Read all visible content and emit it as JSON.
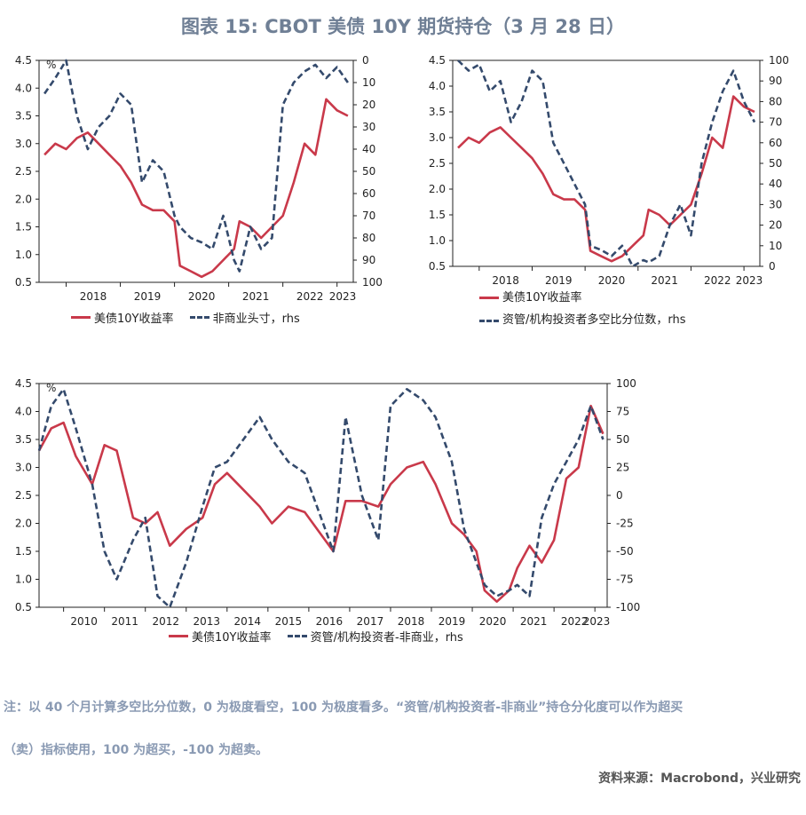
{
  "title": "图表 15: CBOT 美债 10Y 期货持仓（3 月 28 日）",
  "colors": {
    "yield": "#c9394a",
    "position": "#344a6c",
    "title": "#6f7f95"
  },
  "note_line1": "注：以 40 个月计算多空比分位数，0 为极度看空，100 为极度看多。“资管/机构投资者-非商业”持仓分化度可以作为超买",
  "note_line2": "（卖）指标使用，100 为超买，-100 为超卖。",
  "source": "资料来源：Macrobond，兴业研究",
  "chart_data": [
    {
      "type": "line",
      "left_unit": "%",
      "left_ylim": [
        0.5,
        4.5
      ],
      "left_ticks": [
        "0.5",
        "1.0",
        "1.5",
        "2.0",
        "2.5",
        "3.0",
        "3.5",
        "4.0",
        "4.5"
      ],
      "right_ylim": [
        0,
        100
      ],
      "right_inverted": true,
      "right_ticks": [
        "0",
        "10",
        "20",
        "30",
        "40",
        "50",
        "60",
        "70",
        "80",
        "90",
        "100"
      ],
      "x_ticks": [
        "2018",
        "2019",
        "2020",
        "2021",
        "2022",
        "2023"
      ],
      "legend": {
        "yield": "美债10Y收益率",
        "position": "非商业头寸，rhs"
      },
      "series": [
        {
          "name": "美债10Y收益率",
          "axis": "left",
          "x": [
            2017.6,
            2017.8,
            2018.0,
            2018.2,
            2018.4,
            2018.6,
            2018.8,
            2019.0,
            2019.2,
            2019.4,
            2019.6,
            2019.8,
            2020.0,
            2020.1,
            2020.3,
            2020.5,
            2020.7,
            2020.9,
            2021.1,
            2021.2,
            2021.4,
            2021.6,
            2021.8,
            2022.0,
            2022.2,
            2022.4,
            2022.6,
            2022.8,
            2023.0,
            2023.2
          ],
          "values": [
            2.8,
            3.0,
            2.9,
            3.1,
            3.2,
            3.0,
            2.8,
            2.6,
            2.3,
            1.9,
            1.8,
            1.8,
            1.6,
            0.8,
            0.7,
            0.6,
            0.7,
            0.9,
            1.1,
            1.6,
            1.5,
            1.3,
            1.5,
            1.7,
            2.3,
            3.0,
            2.8,
            3.8,
            3.6,
            3.5
          ]
        },
        {
          "name": "非商业头寸",
          "axis": "right",
          "x": [
            2017.6,
            2017.8,
            2018.0,
            2018.2,
            2018.4,
            2018.6,
            2018.8,
            2019.0,
            2019.2,
            2019.4,
            2019.6,
            2019.8,
            2020.0,
            2020.1,
            2020.3,
            2020.5,
            2020.7,
            2020.9,
            2021.1,
            2021.2,
            2021.4,
            2021.6,
            2021.8,
            2022.0,
            2022.2,
            2022.4,
            2022.6,
            2022.8,
            2023.0,
            2023.2
          ],
          "values": [
            15,
            8,
            0,
            25,
            40,
            30,
            25,
            15,
            20,
            55,
            45,
            50,
            70,
            75,
            80,
            82,
            85,
            70,
            90,
            95,
            75,
            85,
            80,
            20,
            10,
            5,
            2,
            8,
            3,
            10
          ]
        }
      ]
    },
    {
      "type": "line",
      "left_ylim": [
        0.5,
        4.5
      ],
      "left_ticks": [
        "0.5",
        "1.0",
        "1.5",
        "2.0",
        "2.5",
        "3.0",
        "3.5",
        "4.0",
        "4.5"
      ],
      "right_ylim": [
        0,
        100
      ],
      "right_ticks": [
        "0",
        "10",
        "20",
        "30",
        "40",
        "50",
        "60",
        "70",
        "80",
        "90",
        "100"
      ],
      "x_ticks": [
        "2018",
        "2019",
        "2020",
        "2021",
        "2022",
        "2023"
      ],
      "legend": {
        "yield": "美债10Y收益率",
        "position": "资管/机构投资者多空比分位数，rhs"
      },
      "series": [
        {
          "name": "美债10Y收益率",
          "axis": "left",
          "x": [
            2017.6,
            2017.8,
            2018.0,
            2018.2,
            2018.4,
            2018.6,
            2018.8,
            2019.0,
            2019.2,
            2019.4,
            2019.6,
            2019.8,
            2020.0,
            2020.1,
            2020.3,
            2020.5,
            2020.7,
            2020.9,
            2021.1,
            2021.2,
            2021.4,
            2021.6,
            2021.8,
            2022.0,
            2022.2,
            2022.4,
            2022.6,
            2022.8,
            2023.0,
            2023.2
          ],
          "values": [
            2.8,
            3.0,
            2.9,
            3.1,
            3.2,
            3.0,
            2.8,
            2.6,
            2.3,
            1.9,
            1.8,
            1.8,
            1.6,
            0.8,
            0.7,
            0.6,
            0.7,
            0.9,
            1.1,
            1.6,
            1.5,
            1.3,
            1.5,
            1.7,
            2.3,
            3.0,
            2.8,
            3.8,
            3.6,
            3.5
          ]
        },
        {
          "name": "资管/机构投资者多空比分位数",
          "axis": "right",
          "x": [
            2017.6,
            2017.8,
            2018.0,
            2018.2,
            2018.4,
            2018.6,
            2018.8,
            2019.0,
            2019.2,
            2019.4,
            2019.6,
            2019.8,
            2020.0,
            2020.1,
            2020.3,
            2020.5,
            2020.7,
            2020.9,
            2021.1,
            2021.2,
            2021.4,
            2021.6,
            2021.8,
            2022.0,
            2022.2,
            2022.4,
            2022.6,
            2022.8,
            2023.0,
            2023.2
          ],
          "values": [
            100,
            95,
            98,
            85,
            90,
            70,
            80,
            95,
            90,
            60,
            50,
            40,
            30,
            10,
            8,
            5,
            10,
            0,
            3,
            2,
            5,
            20,
            30,
            15,
            50,
            70,
            85,
            95,
            80,
            70
          ]
        }
      ]
    },
    {
      "type": "line",
      "left_unit": "%",
      "left_ylim": [
        0.5,
        4.5
      ],
      "left_ticks": [
        "0.5",
        "1.0",
        "1.5",
        "2.0",
        "2.5",
        "3.0",
        "3.5",
        "4.0",
        "4.5"
      ],
      "right_ylim": [
        -100,
        100
      ],
      "right_ticks": [
        "-100",
        "-75",
        "-50",
        "-25",
        "0",
        "25",
        "50",
        "75",
        "100"
      ],
      "x_ticks": [
        "2010",
        "2011",
        "2012",
        "2013",
        "2014",
        "2015",
        "2016",
        "2017",
        "2018",
        "2019",
        "2020",
        "2021",
        "2022",
        "2023"
      ],
      "legend": {
        "yield": "美债10Y收益率",
        "position": "资管/机构投资者-非商业，rhs"
      },
      "series": [
        {
          "name": "美债10Y收益率",
          "axis": "left",
          "x": [
            2009.4,
            2009.7,
            2010.0,
            2010.3,
            2010.7,
            2011.0,
            2011.3,
            2011.7,
            2012.0,
            2012.3,
            2012.6,
            2013.0,
            2013.4,
            2013.7,
            2014.0,
            2014.4,
            2014.8,
            2015.1,
            2015.5,
            2015.9,
            2016.3,
            2016.6,
            2016.9,
            2017.3,
            2017.7,
            2018.0,
            2018.4,
            2018.8,
            2019.1,
            2019.5,
            2019.8,
            2020.1,
            2020.3,
            2020.6,
            2020.9,
            2021.1,
            2021.4,
            2021.7,
            2022.0,
            2022.3,
            2022.6,
            2022.9,
            2023.2
          ],
          "values": [
            3.3,
            3.7,
            3.8,
            3.2,
            2.7,
            3.4,
            3.3,
            2.1,
            2.0,
            2.2,
            1.6,
            1.9,
            2.1,
            2.7,
            2.9,
            2.6,
            2.3,
            2.0,
            2.3,
            2.2,
            1.8,
            1.5,
            2.4,
            2.4,
            2.3,
            2.7,
            3.0,
            3.1,
            2.7,
            2.0,
            1.8,
            1.5,
            0.8,
            0.6,
            0.8,
            1.2,
            1.6,
            1.3,
            1.7,
            2.8,
            3.0,
            4.1,
            3.6
          ]
        },
        {
          "name": "资管/机构投资者-非商业",
          "axis": "right",
          "x": [
            2009.4,
            2009.7,
            2010.0,
            2010.3,
            2010.7,
            2011.0,
            2011.3,
            2011.7,
            2012.0,
            2012.3,
            2012.6,
            2013.0,
            2013.4,
            2013.7,
            2014.0,
            2014.4,
            2014.8,
            2015.1,
            2015.5,
            2015.9,
            2016.3,
            2016.6,
            2016.9,
            2017.3,
            2017.7,
            2018.0,
            2018.4,
            2018.8,
            2019.1,
            2019.5,
            2019.8,
            2020.1,
            2020.3,
            2020.6,
            2020.9,
            2021.1,
            2021.4,
            2021.7,
            2022.0,
            2022.3,
            2022.6,
            2022.9,
            2023.2
          ],
          "values": [
            40,
            80,
            95,
            60,
            10,
            -50,
            -75,
            -40,
            -20,
            -90,
            -100,
            -60,
            -10,
            25,
            30,
            50,
            70,
            50,
            30,
            20,
            -20,
            -50,
            70,
            0,
            -40,
            80,
            95,
            85,
            70,
            30,
            -30,
            -60,
            -80,
            -90,
            -85,
            -80,
            -90,
            -20,
            10,
            30,
            50,
            80,
            50
          ]
        }
      ]
    }
  ]
}
